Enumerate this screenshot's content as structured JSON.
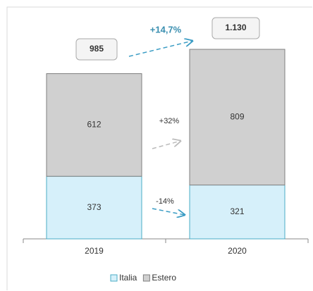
{
  "chart_data": {
    "type": "stacked-bar",
    "categories": [
      "2019",
      "2020"
    ],
    "series": [
      {
        "name": "Italia",
        "color": "#d6f0fa",
        "values": [
          373,
          321
        ]
      },
      {
        "name": "Estero",
        "color": "#d0d0d0",
        "values": [
          612,
          809
        ]
      }
    ],
    "totals": {
      "values": [
        985,
        1130
      ],
      "value_labels": [
        "985",
        "1.130"
      ]
    },
    "annotations": [
      "+14,7%",
      "+32%",
      "-14%"
    ]
  }
}
